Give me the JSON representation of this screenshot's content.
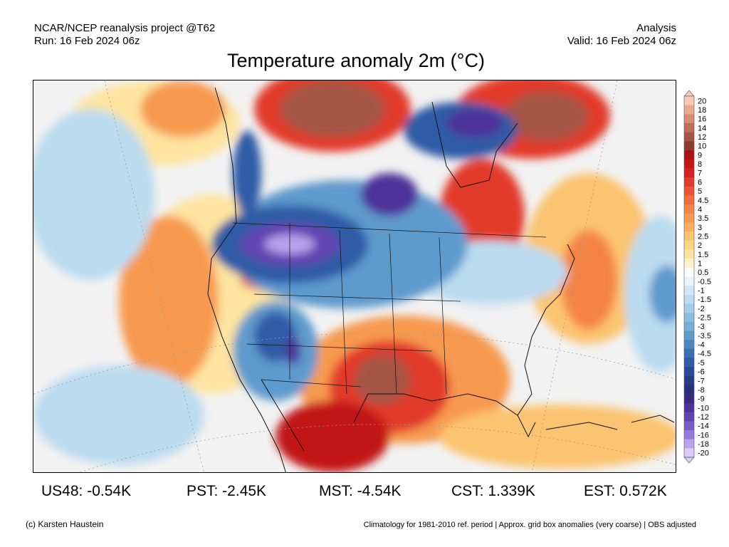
{
  "header": {
    "line1_left": "NCAR/NCEP reanalysis project @T62",
    "line2_left": "Run: 16 Feb 2024 06z",
    "line1_right": "Analysis",
    "line2_right": "Valid: 16 Feb 2024 06z",
    "title": "Temperature anomaly 2m (°C)"
  },
  "legend": {
    "labels": [
      "20",
      "18",
      "16",
      "14",
      "12",
      "10",
      "9",
      "8",
      "7",
      "6",
      "5",
      "4.5",
      "4",
      "3.5",
      "3",
      "2.5",
      "2",
      "1.5",
      "1",
      "0.5",
      "-0.5",
      "-1",
      "-1.5",
      "-2",
      "-2.5",
      "-3",
      "-3.5",
      "-4",
      "-4.5",
      "-5",
      "-6",
      "-7",
      "-8",
      "-9",
      "-10",
      "-12",
      "-14",
      "-16",
      "-18",
      "-20"
    ],
    "colors": [
      "#f6c9b5",
      "#e9a98f",
      "#d88b72",
      "#c16d58",
      "#a65445",
      "#8c3b30",
      "#ab1212",
      "#c21717",
      "#d72020",
      "#e23a2a",
      "#eb5535",
      "#f06d3d",
      "#f48445",
      "#f79a50",
      "#fab05e",
      "#fbc46f",
      "#fcd585",
      "#fde4a0",
      "#fef2c8",
      "#ffffff",
      "#e8f3fb",
      "#d3e8f6",
      "#bcdbef",
      "#a6cde8",
      "#8fbde0",
      "#78add7",
      "#5f9acd",
      "#4b85c1",
      "#3b70b4",
      "#2f5ca6",
      "#284a97",
      "#263b88",
      "#29307a",
      "#3a2a80",
      "#4d339a",
      "#6344b2",
      "#7a5ac8",
      "#957bdb",
      "#b6a3ec",
      "#d9cdf7"
    ]
  },
  "stats": [
    {
      "label": "US48:",
      "value": "-0.54K"
    },
    {
      "label": "PST:",
      "value": "-2.45K"
    },
    {
      "label": "MST:",
      "value": "-4.54K"
    },
    {
      "label": "CST:",
      "value": "1.339K"
    },
    {
      "label": "EST:",
      "value": "0.572K"
    }
  ],
  "footer": {
    "left": "(c) Karsten Haustein",
    "right": "Climatology for 1981-2010 ref. period | Approx. grid box anomalies (very coarse) | OBS adjusted"
  },
  "map_colors": {
    "neutral": "#f2f2f2",
    "light_warm": "#fde4a0",
    "warm": "#f79a50",
    "hot": "#e23a2a",
    "very_hot": "#c21717",
    "brown": "#a65445",
    "light_cold": "#bcdbef",
    "cold": "#5f9acd",
    "very_cold": "#2f5ca6",
    "purple": "#4d339a",
    "lavender": "#b6a3ec",
    "border": "#111111"
  }
}
